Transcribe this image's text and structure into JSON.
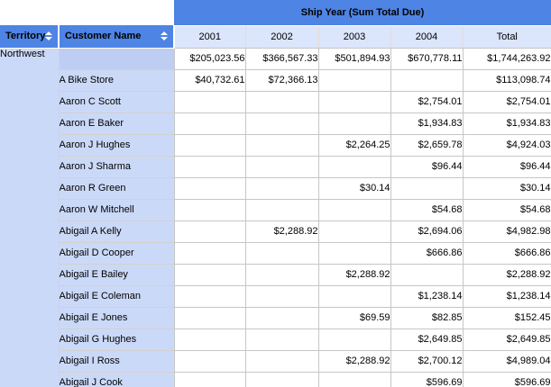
{
  "banner": {
    "title": "Ship Year (Sum Total Due)"
  },
  "header": {
    "territory_label": "Territory",
    "customer_label": "Customer Name",
    "sort_icon": "up-down-sort-arrows",
    "year_columns": [
      "2001",
      "2002",
      "2003",
      "2004",
      "Total"
    ]
  },
  "colors": {
    "header_blue": "#4e84e4",
    "year_header_bg": "#dbe5fb",
    "row_header_bg": "#cbd9f8",
    "subtotal_row_header_bg": "#bdcef2",
    "grid_line": "#c6c6c6",
    "header_text": "#ffffff",
    "body_text": "#000000"
  },
  "table": {
    "rows": [
      {
        "territory": "Northwest",
        "customer": "",
        "is_subtotal": true,
        "values": [
          "$205,023.56",
          "$366,567.33",
          "$501,894.93",
          "$670,778.11",
          "$1,744,263.92"
        ]
      },
      {
        "customer": "A Bike Store",
        "values": [
          "$40,732.61",
          "$72,366.13",
          "",
          "",
          "$113,098.74"
        ]
      },
      {
        "customer": "Aaron C Scott",
        "values": [
          "",
          "",
          "",
          "$2,754.01",
          "$2,754.01"
        ]
      },
      {
        "customer": "Aaron E Baker",
        "values": [
          "",
          "",
          "",
          "$1,934.83",
          "$1,934.83"
        ]
      },
      {
        "customer": "Aaron J Hughes",
        "values": [
          "",
          "",
          "$2,264.25",
          "$2,659.78",
          "$4,924.03"
        ]
      },
      {
        "customer": "Aaron J Sharma",
        "values": [
          "",
          "",
          "",
          "$96.44",
          "$96.44"
        ]
      },
      {
        "customer": "Aaron R Green",
        "values": [
          "",
          "",
          "$30.14",
          "",
          "$30.14"
        ]
      },
      {
        "customer": "Aaron W Mitchell",
        "values": [
          "",
          "",
          "",
          "$54.68",
          "$54.68"
        ]
      },
      {
        "customer": "Abigail A Kelly",
        "values": [
          "",
          "$2,288.92",
          "",
          "$2,694.06",
          "$4,982.98"
        ]
      },
      {
        "customer": "Abigail D Cooper",
        "values": [
          "",
          "",
          "",
          "$666.86",
          "$666.86"
        ]
      },
      {
        "customer": "Abigail E Bailey",
        "values": [
          "",
          "",
          "$2,288.92",
          "",
          "$2,288.92"
        ]
      },
      {
        "customer": "Abigail E Coleman",
        "values": [
          "",
          "",
          "",
          "$1,238.14",
          "$1,238.14"
        ]
      },
      {
        "customer": "Abigail E Jones",
        "values": [
          "",
          "",
          "$69.59",
          "$82.85",
          "$152.45"
        ]
      },
      {
        "customer": "Abigail G Hughes",
        "values": [
          "",
          "",
          "",
          "$2,649.85",
          "$2,649.85"
        ]
      },
      {
        "customer": "Abigail I Ross",
        "values": [
          "",
          "",
          "$2,288.92",
          "$2,700.12",
          "$4,989.04"
        ]
      },
      {
        "customer": "Abigail J Cook",
        "values": [
          "",
          "",
          "",
          "$596.69",
          "$596.69"
        ]
      }
    ]
  }
}
